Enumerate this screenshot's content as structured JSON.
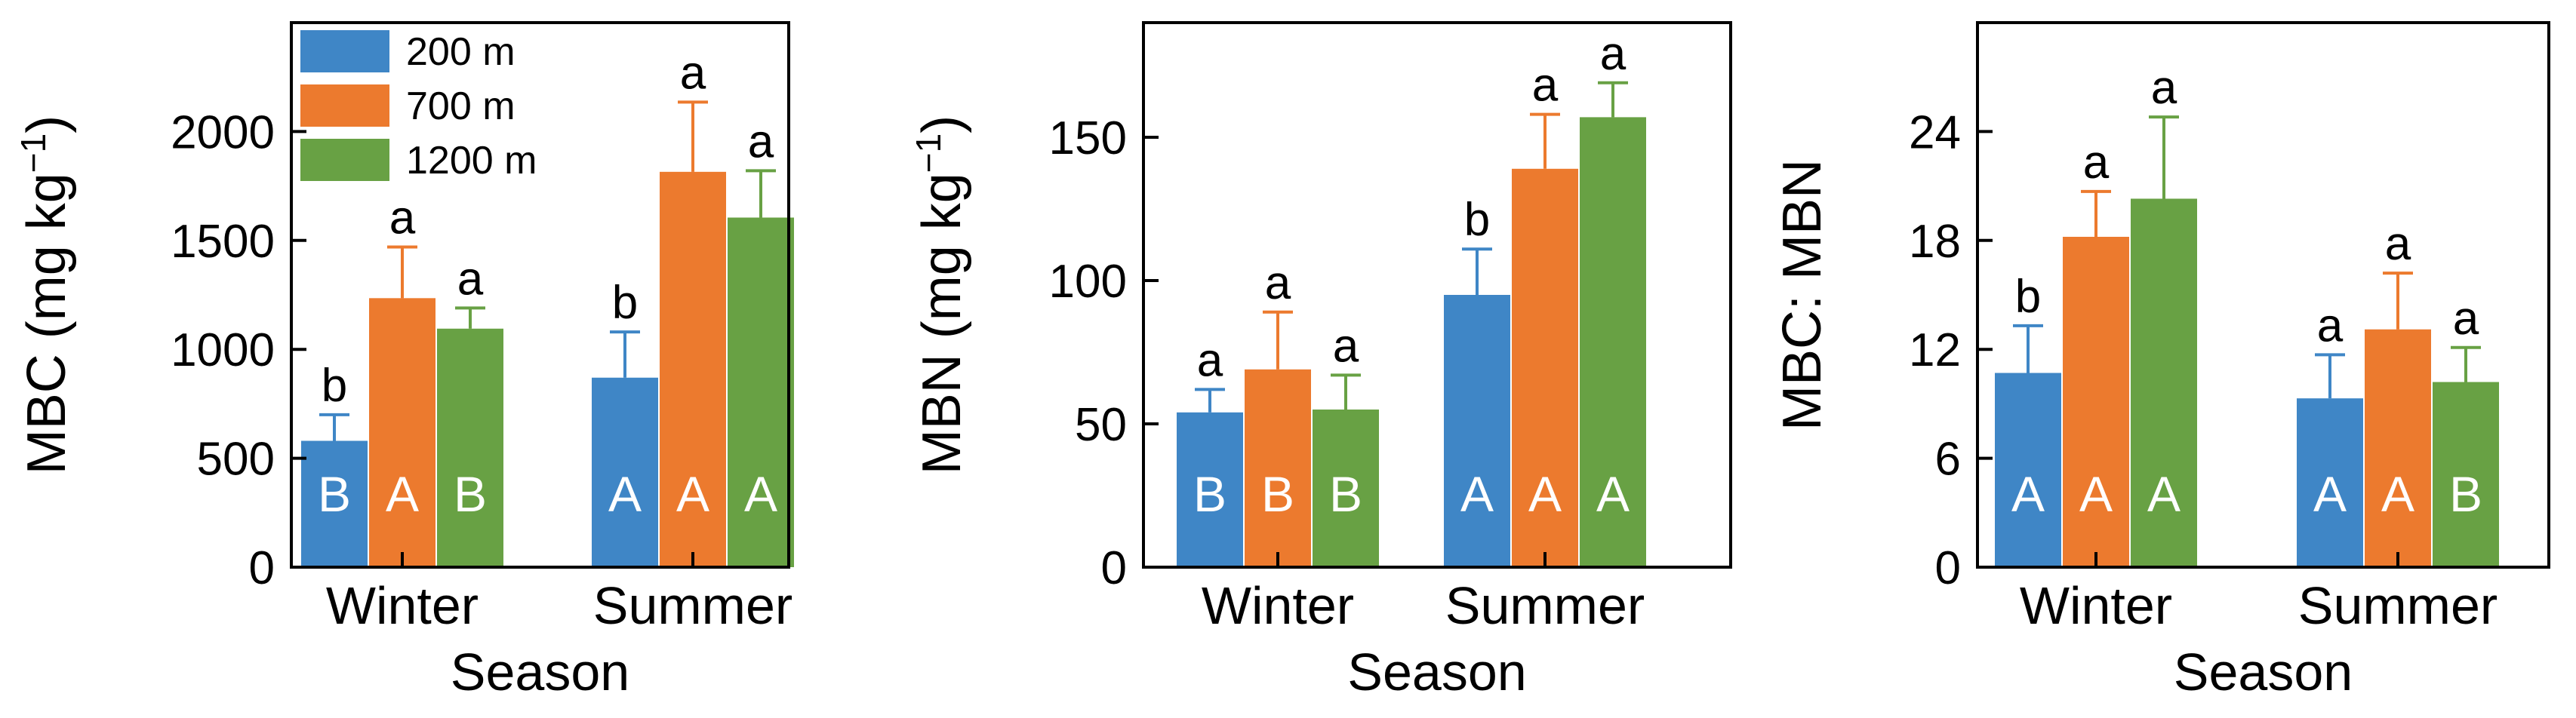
{
  "legend": {
    "items": [
      {
        "label": "200 m",
        "color": "#3f86c6"
      },
      {
        "label": "700 m",
        "color": "#ec7a2e"
      },
      {
        "label": "1200 m",
        "color": "#68a144"
      }
    ],
    "placement": "top-left of first panel"
  },
  "chart_data": [
    {
      "type": "bar",
      "title": "",
      "xlabel": "Season",
      "ylabel": "MBC (mg kg",
      "ylabel_sup": "−1",
      "ylabel_close": ")",
      "categories": [
        "Winter",
        "Summer"
      ],
      "ylim": [
        0,
        2500
      ],
      "yticks": [
        0,
        500,
        1000,
        1500,
        2000
      ],
      "ytick_labels": [
        "0",
        "500",
        "1000",
        "1500",
        "2000"
      ],
      "series": [
        {
          "name": "200 m",
          "values": [
            580,
            870
          ],
          "errors": [
            120,
            210
          ],
          "letters": [
            "b",
            "b"
          ],
          "inner_letters": [
            "B",
            "A"
          ]
        },
        {
          "name": "700 m",
          "values": [
            1235,
            1815
          ],
          "errors": [
            235,
            320
          ],
          "letters": [
            "a",
            "a"
          ],
          "inner_letters": [
            "A",
            "A"
          ]
        },
        {
          "name": "1200 m",
          "values": [
            1095,
            1605
          ],
          "errors": [
            95,
            215
          ],
          "letters": [
            "a",
            "a"
          ],
          "inner_letters": [
            "B",
            "A"
          ]
        }
      ]
    },
    {
      "type": "bar",
      "title": "",
      "xlabel": "Season",
      "ylabel": "MBN (mg kg",
      "ylabel_sup": "−1",
      "ylabel_close": ")",
      "categories": [
        "Winter",
        "Summer"
      ],
      "ylim": [
        0,
        190
      ],
      "yticks": [
        0,
        50,
        100,
        150
      ],
      "ytick_labels": [
        "0",
        "50",
        "100",
        "150"
      ],
      "series": [
        {
          "name": "200 m",
          "values": [
            54,
            95
          ],
          "errors": [
            8,
            16
          ],
          "letters": [
            "a",
            "b"
          ],
          "inner_letters": [
            "B",
            "A"
          ]
        },
        {
          "name": "700 m",
          "values": [
            69,
            139
          ],
          "errors": [
            20,
            19
          ],
          "letters": [
            "a",
            "a"
          ],
          "inner_letters": [
            "B",
            "A"
          ]
        },
        {
          "name": "1200 m",
          "values": [
            55,
            157
          ],
          "errors": [
            12,
            12
          ],
          "letters": [
            "a",
            "a"
          ],
          "inner_letters": [
            "B",
            "A"
          ]
        }
      ]
    },
    {
      "type": "bar",
      "title": "",
      "xlabel": "Season",
      "ylabel": "MBC: MBN",
      "ylabel_sup": "",
      "ylabel_close": "",
      "categories": [
        "Winter",
        "Summer"
      ],
      "ylim": [
        0,
        30
      ],
      "yticks": [
        0,
        6,
        12,
        18,
        24
      ],
      "ytick_labels": [
        "0",
        "6",
        "12",
        "18",
        "24"
      ],
      "series": [
        {
          "name": "200 m",
          "values": [
            10.7,
            9.3
          ],
          "errors": [
            2.6,
            2.4
          ],
          "letters": [
            "b",
            "a"
          ],
          "inner_letters": [
            "A",
            "A"
          ]
        },
        {
          "name": "700 m",
          "values": [
            18.2,
            13.1
          ],
          "errors": [
            2.5,
            3.1
          ],
          "letters": [
            "a",
            "a"
          ],
          "inner_letters": [
            "A",
            "A"
          ]
        },
        {
          "name": "1200 m",
          "values": [
            20.3,
            10.2
          ],
          "errors": [
            4.5,
            1.9
          ],
          "letters": [
            "a",
            "a"
          ],
          "inner_letters": [
            "A",
            "B"
          ]
        }
      ]
    }
  ]
}
